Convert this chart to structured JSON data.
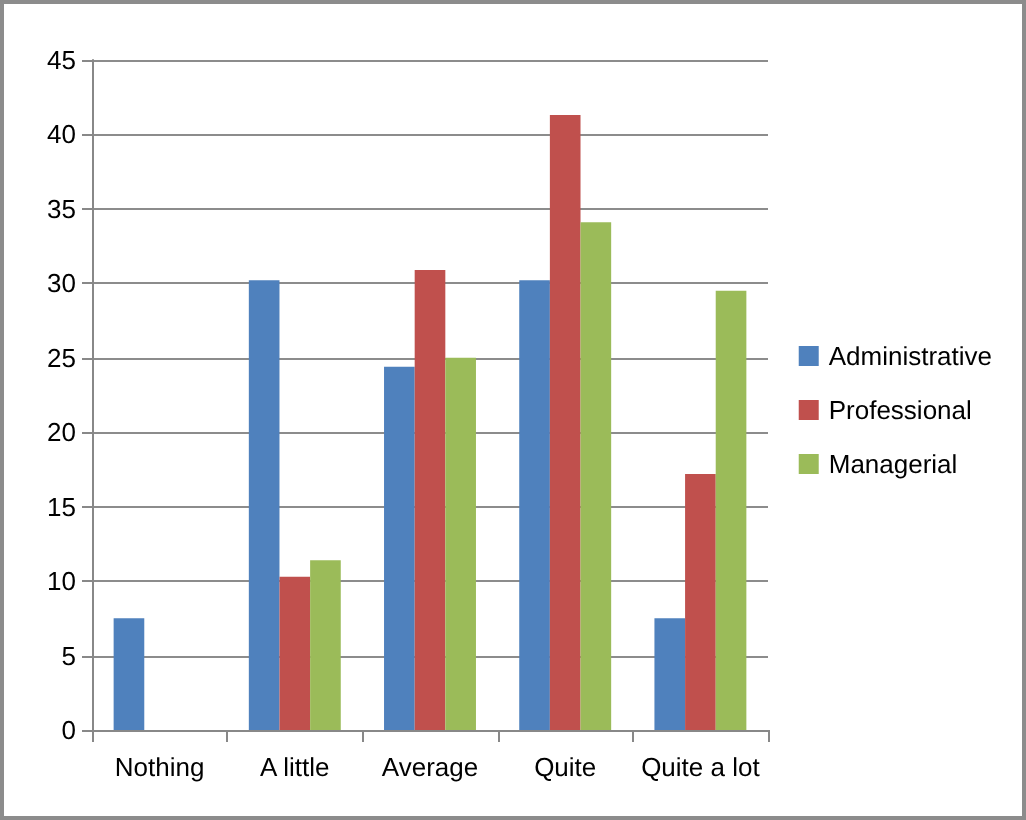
{
  "chart_data": {
    "type": "bar",
    "categories": [
      "Nothing",
      "A little",
      "Average",
      "Quite",
      "Quite a lot"
    ],
    "series": [
      {
        "name": "Administrative",
        "color": "#4f81bd",
        "values": [
          7.5,
          30.2,
          24.4,
          30.2,
          7.5
        ]
      },
      {
        "name": "Professional",
        "color": "#c0504d",
        "values": [
          0,
          10.3,
          30.9,
          41.3,
          17.2
        ]
      },
      {
        "name": "Managerial",
        "color": "#9bbb59",
        "values": [
          0,
          11.4,
          25,
          34.1,
          29.5
        ]
      }
    ],
    "ylim": [
      0,
      45
    ],
    "yticks": [
      0,
      5,
      10,
      15,
      20,
      25,
      30,
      35,
      40,
      45
    ],
    "grid": "y",
    "legend": "right"
  }
}
